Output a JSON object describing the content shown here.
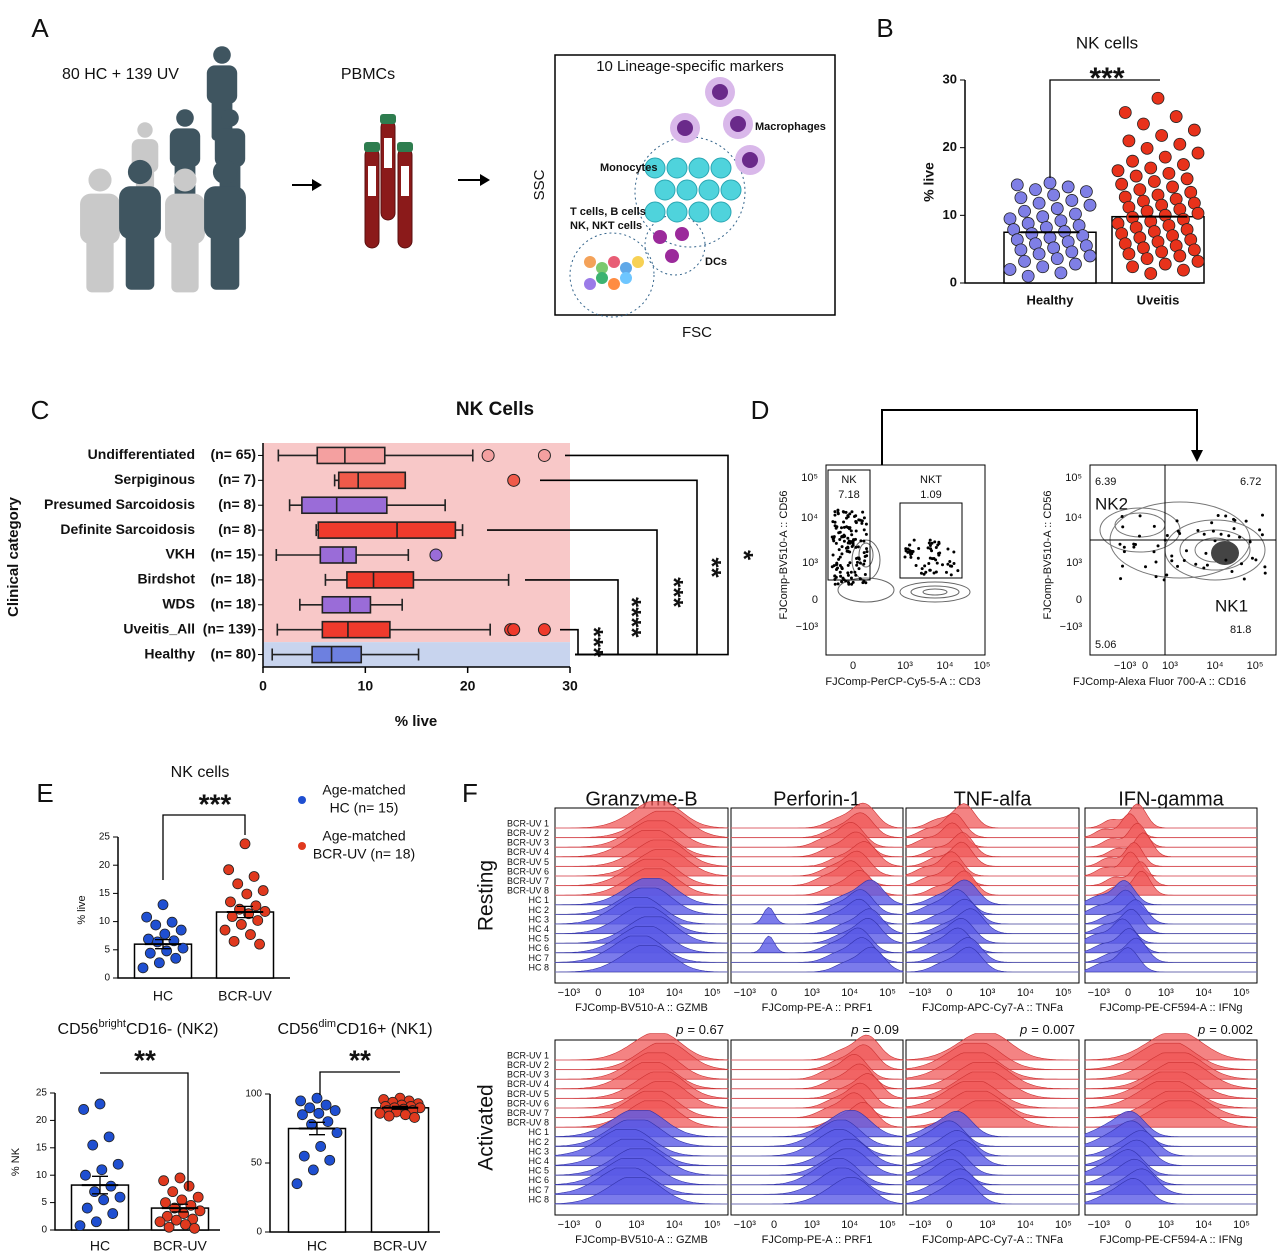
{
  "panel_labels": [
    "A",
    "B",
    "C",
    "D",
    "E",
    "F"
  ],
  "diagram": {
    "cohort": "80 HC + 139 UV",
    "sample": "PBMCs",
    "panel_title": "10 Lineage-specific markers",
    "populations": [
      "Macrophages",
      "Monocytes",
      "T cells, B cells",
      "NK, NKT cells",
      "DCs"
    ],
    "y_axis": "SSC",
    "x_axis": "FSC"
  },
  "chart_data": [
    {
      "type": "scatter_bar",
      "title": "NK cells",
      "ylabel": "% live",
      "categories": [
        "Healthy",
        "Uveitis"
      ],
      "values": [
        7.5,
        9.8
      ],
      "colors": [
        "#7f7fe6",
        "#e8321b"
      ],
      "points": [
        [
          14.8,
          14.5,
          14.2,
          13.8,
          13.5,
          13,
          12.6,
          12.2,
          11.8,
          11.5,
          11,
          10.6,
          10.2,
          9.8,
          9.5,
          9.2,
          8.8,
          8.5,
          8.2,
          7.9,
          7.6,
          7.3,
          7,
          6.7,
          6.4,
          6.1,
          5.8,
          5.5,
          5.2,
          4.9,
          4.6,
          4.3,
          4,
          3.6,
          3.2,
          2.8,
          2.4,
          2,
          1.5,
          1
        ],
        [
          27.3,
          25.2,
          24.6,
          23.5,
          22.6,
          21.8,
          21,
          20.5,
          19.9,
          19.2,
          18.6,
          18,
          17.5,
          17,
          16.6,
          16.2,
          15.8,
          15.4,
          15,
          14.6,
          14.2,
          13.8,
          13.4,
          13,
          12.7,
          12.4,
          12.1,
          11.8,
          11.5,
          11.2,
          10.9,
          10.6,
          10.3,
          10,
          9.7,
          9.4,
          9.1,
          8.8,
          8.5,
          8.2,
          7.9,
          7.6,
          7.3,
          7,
          6.7,
          6.4,
          6.1,
          5.8,
          5.5,
          5.2,
          4.9,
          4.6,
          4.3,
          4,
          3.6,
          3.2,
          2.8,
          2.4,
          1.9,
          1.4
        ]
      ],
      "ylim": [
        0,
        30
      ],
      "yticks": [
        0,
        10,
        20,
        30
      ],
      "significance": "***"
    },
    {
      "type": "box",
      "title": "NK Cells",
      "xlabel": "% live",
      "ylabel": "Clinical category",
      "categories": [
        "Undifferentiated",
        "Serpiginous",
        "Presumed Sarcoidosis",
        "Definite Sarcoidosis",
        "VKH",
        "Birdshot",
        "WDS",
        "Uveitis_All",
        "Healthy"
      ],
      "n_labels": [
        "(n= 65)",
        "(n= 7)",
        "(n= 8)",
        "(n= 8)",
        "(n= 15)",
        "(n= 18)",
        "(n= 18)",
        "(n= 139)",
        "(n= 80)"
      ],
      "colors": [
        "#f4a0a0",
        "#f05a4a",
        "#9a6cd8",
        "#ef3a2c",
        "#9a6cd8",
        "#ef3a2c",
        "#9a6cd8",
        "#ef3a2c",
        "#6d80e0"
      ],
      "min": [
        1.5,
        7.0,
        2.6,
        5.2,
        1.3,
        6.1,
        3.6,
        1.4,
        0.9
      ],
      "q1": [
        5.3,
        7.4,
        3.8,
        5.4,
        5.6,
        8.2,
        5.8,
        5.8,
        4.8
      ],
      "median": [
        8.0,
        9.3,
        7.2,
        13.1,
        7.8,
        10.8,
        8.5,
        8.3,
        6.7
      ],
      "q3": [
        11.9,
        13.9,
        12.1,
        18.8,
        9.1,
        14.7,
        10.5,
        12.4,
        9.6
      ],
      "max": [
        20.5,
        13.9,
        17.8,
        19.5,
        14.2,
        24.0,
        13.6,
        22.2,
        15.2
      ],
      "outliers": [
        [
          22,
          27.5
        ],
        [
          24.5
        ],
        [],
        [],
        [
          16.9
        ],
        [],
        [],
        [
          24.2,
          24.5,
          27.5
        ],
        []
      ],
      "xlim": [
        0,
        30
      ],
      "xticks": [
        0,
        10,
        20,
        30
      ],
      "significance": [
        "***",
        "****",
        "***",
        "**",
        "*"
      ]
    },
    {
      "type": "scatter_bar",
      "title": "NK cells",
      "ylabel": "% live",
      "categories": [
        "HC",
        "BCR-UV"
      ],
      "values": [
        6.0,
        11.7
      ],
      "errors": [
        0.8,
        1.0
      ],
      "colors": [
        "#1f4fd1",
        "#e0391e"
      ],
      "points": [
        [
          13,
          10.8,
          9.9,
          9.4,
          8.5,
          7.8,
          6.9,
          6.6,
          6.4,
          5.3,
          4.8,
          4.4,
          3.5,
          2.7,
          1.8
        ],
        [
          23.8,
          19.2,
          18,
          16.7,
          15.5,
          14.9,
          13.5,
          12.8,
          12.2,
          11.8,
          11.4,
          10.9,
          10.2,
          9.5,
          8.5,
          7.7,
          6.5,
          6
        ]
      ],
      "ylim": [
        0,
        25
      ],
      "yticks": [
        0,
        5,
        10,
        15,
        20,
        25
      ],
      "significance": "***",
      "legend": [
        [
          "Age-matched",
          "HC (n= 15)"
        ],
        [
          "Age-matched",
          "BCR-UV (n= 18)"
        ]
      ]
    },
    {
      "type": "scatter_bar",
      "title_parts": [
        "CD56",
        "bright",
        "CD16- (NK2)"
      ],
      "ylabel": "% NK",
      "categories": [
        "HC",
        "BCR-UV"
      ],
      "values": [
        8.2,
        4.0
      ],
      "errors": [
        1.6,
        0.7
      ],
      "colors": [
        "#1f4fd1",
        "#e0391e"
      ],
      "points": [
        [
          23,
          22,
          17,
          15.5,
          12,
          11,
          10,
          8,
          7,
          6,
          5.5,
          4,
          3,
          1.5,
          0.8
        ],
        [
          9.5,
          9,
          8,
          7,
          6,
          5.5,
          5,
          4.5,
          4,
          3.5,
          3,
          2.5,
          2,
          1.8,
          1.5,
          1,
          0.5,
          0.3
        ]
      ],
      "ylim": [
        0,
        25
      ],
      "yticks": [
        0,
        5,
        10,
        15,
        20,
        25
      ],
      "significance": "**"
    },
    {
      "type": "scatter_bar",
      "title_parts": [
        "CD56",
        "dim",
        "CD16+ (NK1)"
      ],
      "categories": [
        "HC",
        "BCR-UV"
      ],
      "values": [
        75,
        90
      ],
      "errors": [
        4.5,
        1
      ],
      "colors": [
        "#1f4fd1",
        "#e0391e"
      ],
      "points": [
        [
          97,
          95,
          92,
          90,
          88,
          86,
          85,
          80,
          78,
          72,
          62,
          55,
          52,
          45,
          35
        ],
        [
          97,
          96,
          95,
          94,
          93,
          92,
          91,
          91,
          90,
          90,
          89,
          88,
          88,
          87,
          86,
          85,
          84,
          83
        ]
      ],
      "ylim": [
        0,
        100
      ],
      "yticks": [
        0,
        50,
        100
      ],
      "significance": "**"
    }
  ],
  "flow_plots": [
    {
      "y_label": "FJComp-BV510-A :: CD56",
      "x_label": "FJComp-PerCP-Cy5-5-A :: CD3",
      "gates": [
        "NK",
        "NKT"
      ],
      "gate_values": [
        7.18,
        1.09
      ],
      "y_ticks": [
        "10⁵",
        "10⁴",
        "10³",
        "0",
        "−10³"
      ],
      "x_ticks": [
        "0",
        "10³",
        "10⁴",
        "10⁵"
      ]
    },
    {
      "y_label": "FJComp-BV510-A :: CD56",
      "x_label": "FJComp-Alexa Fluor 700-A :: CD16",
      "gates": [
        "NK2",
        "NK1"
      ],
      "quadrant_values": [
        6.39,
        6.72,
        5.06,
        81.8
      ],
      "y_ticks": [
        "10⁵",
        "10⁴",
        "10³",
        "0",
        "−10³"
      ],
      "x_ticks": [
        "−10³",
        "0",
        "10³",
        "10⁴",
        "10⁵"
      ]
    }
  ],
  "histograms": {
    "titles": [
      "Granzyme-B",
      "Perforin-1",
      "TNF-alfa",
      "IFN-gamma"
    ],
    "conditions": [
      "Resting",
      "Activated"
    ],
    "samples": [
      "BCR-UV 1",
      "BCR-UV 2",
      "BCR-UV 3",
      "BCR-UV 4",
      "BCR-UV 5",
      "BCR-UV 6",
      "BCR-UV 7",
      "BCR-UV 8",
      "HC 1",
      "HC 2",
      "HC 3",
      "HC 4",
      "HC 5",
      "HC 6",
      "HC 7",
      "HC 8"
    ],
    "x_labels": [
      "FJComp-BV510-A :: GZMB",
      "FJComp-PE-A :: PRF1",
      "FJComp-APC-Cy7-A :: TNFa",
      "FJComp-PE-CF594-A :: IFNg"
    ],
    "x_ticks": [
      "−10³",
      "0",
      "10³",
      "10⁴",
      "10⁵"
    ],
    "p_symbol": "p",
    "p_values": [
      "= 0.67",
      "= 0.09",
      "= 0.007",
      "= 0.002"
    ]
  }
}
